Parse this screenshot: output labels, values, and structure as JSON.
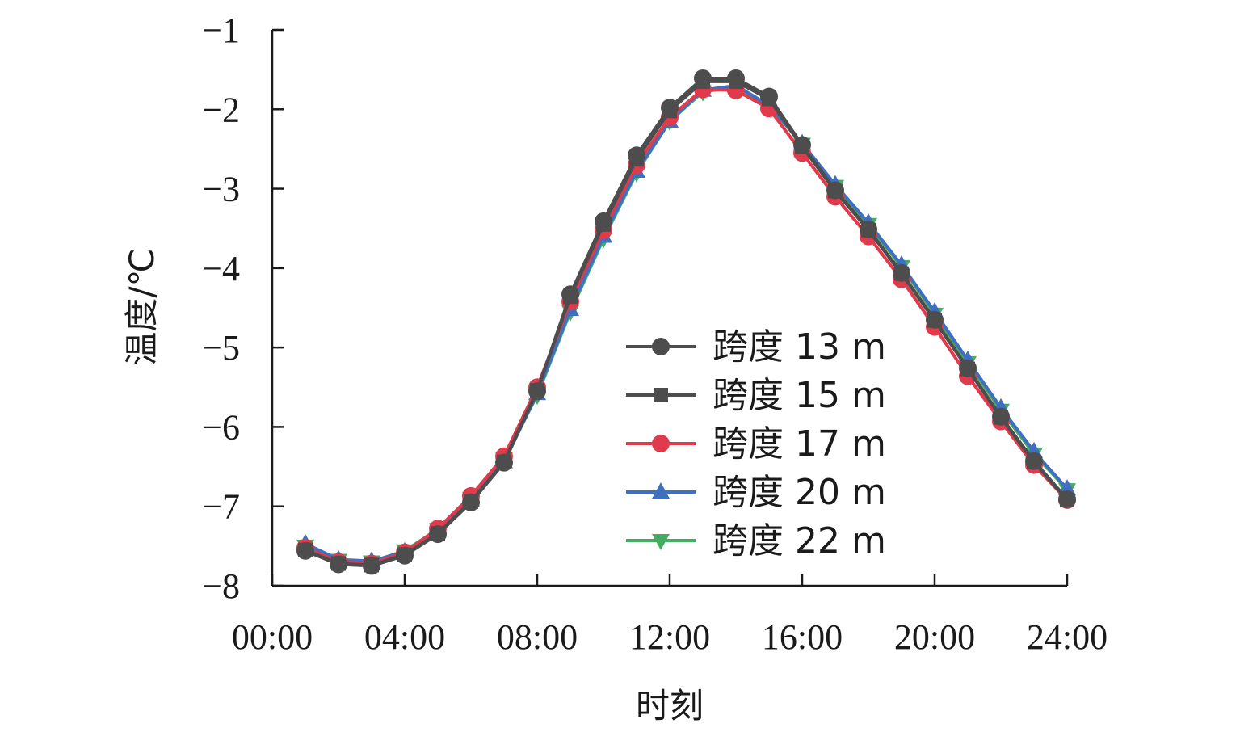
{
  "chart_data": {
    "type": "line",
    "xlabel": "时刻",
    "ylabel": "温度/℃",
    "xlim": [
      0,
      24
    ],
    "ylim": [
      -8,
      -1
    ],
    "grid": false,
    "legend_position": "center-right",
    "x_ticks": [
      {
        "value": 0,
        "label": "00:00"
      },
      {
        "value": 4,
        "label": "04:00"
      },
      {
        "value": 8,
        "label": "08:00"
      },
      {
        "value": 12,
        "label": "12:00"
      },
      {
        "value": 16,
        "label": "16:00"
      },
      {
        "value": 20,
        "label": "20:00"
      },
      {
        "value": 24,
        "label": "24:00"
      }
    ],
    "y_ticks": [
      {
        "value": -1,
        "label": "−1"
      },
      {
        "value": -2,
        "label": "−2"
      },
      {
        "value": -3,
        "label": "−3"
      },
      {
        "value": -4,
        "label": "−4"
      },
      {
        "value": -5,
        "label": "−5"
      },
      {
        "value": -6,
        "label": "−6"
      },
      {
        "value": -7,
        "label": "−7"
      },
      {
        "value": -8,
        "label": "−8"
      }
    ],
    "x": [
      1,
      2,
      3,
      4,
      5,
      6,
      7,
      8,
      9,
      10,
      11,
      12,
      13,
      14,
      15,
      16,
      17,
      18,
      19,
      20,
      21,
      22,
      23,
      24
    ],
    "series": [
      {
        "name": "跨度 13 m",
        "color": "#4d4d4d",
        "marker": "circle",
        "values": [
          -7.56,
          -7.73,
          -7.75,
          -7.62,
          -7.35,
          -6.95,
          -6.45,
          -5.55,
          -4.33,
          -3.41,
          -2.58,
          -1.98,
          -1.61,
          -1.61,
          -1.84,
          -2.45,
          -3.02,
          -3.51,
          -4.06,
          -4.65,
          -5.26,
          -5.87,
          -6.43,
          -6.91
        ]
      },
      {
        "name": "跨度 15 m",
        "color": "#4d4d4d",
        "marker": "square",
        "values": [
          -7.55,
          -7.72,
          -7.74,
          -7.61,
          -7.34,
          -6.94,
          -6.44,
          -5.54,
          -4.36,
          -3.45,
          -2.63,
          -2.02,
          -1.65,
          -1.65,
          -1.87,
          -2.47,
          -3.03,
          -3.52,
          -4.07,
          -4.66,
          -5.27,
          -5.88,
          -6.44,
          -6.92
        ]
      },
      {
        "name": "跨度 17 m",
        "color": "#e03a4d",
        "marker": "circle",
        "values": [
          -7.52,
          -7.7,
          -7.72,
          -7.58,
          -7.28,
          -6.87,
          -6.37,
          -5.5,
          -4.42,
          -3.52,
          -2.7,
          -2.1,
          -1.75,
          -1.76,
          -1.99,
          -2.55,
          -3.1,
          -3.6,
          -4.14,
          -4.74,
          -5.36,
          -5.93,
          -6.48,
          -6.92
        ]
      },
      {
        "name": "跨度 20 m",
        "color": "#3f6fbf",
        "marker": "triangle-up",
        "values": [
          -7.47,
          -7.67,
          -7.69,
          -7.57,
          -7.3,
          -6.92,
          -6.44,
          -5.58,
          -4.52,
          -3.6,
          -2.78,
          -2.15,
          -1.76,
          -1.7,
          -1.95,
          -2.43,
          -2.95,
          -3.43,
          -3.96,
          -4.55,
          -5.16,
          -5.76,
          -6.31,
          -6.78
        ]
      },
      {
        "name": "跨度 22 m",
        "color": "#46ab62",
        "marker": "triangle-down",
        "values": [
          -7.5,
          -7.68,
          -7.7,
          -7.56,
          -7.29,
          -6.9,
          -6.4,
          -5.6,
          -4.55,
          -3.63,
          -2.8,
          -2.15,
          -1.78,
          -1.72,
          -1.95,
          -2.44,
          -2.97,
          -3.45,
          -3.98,
          -4.58,
          -5.19,
          -5.79,
          -6.34,
          -6.79
        ]
      }
    ]
  }
}
